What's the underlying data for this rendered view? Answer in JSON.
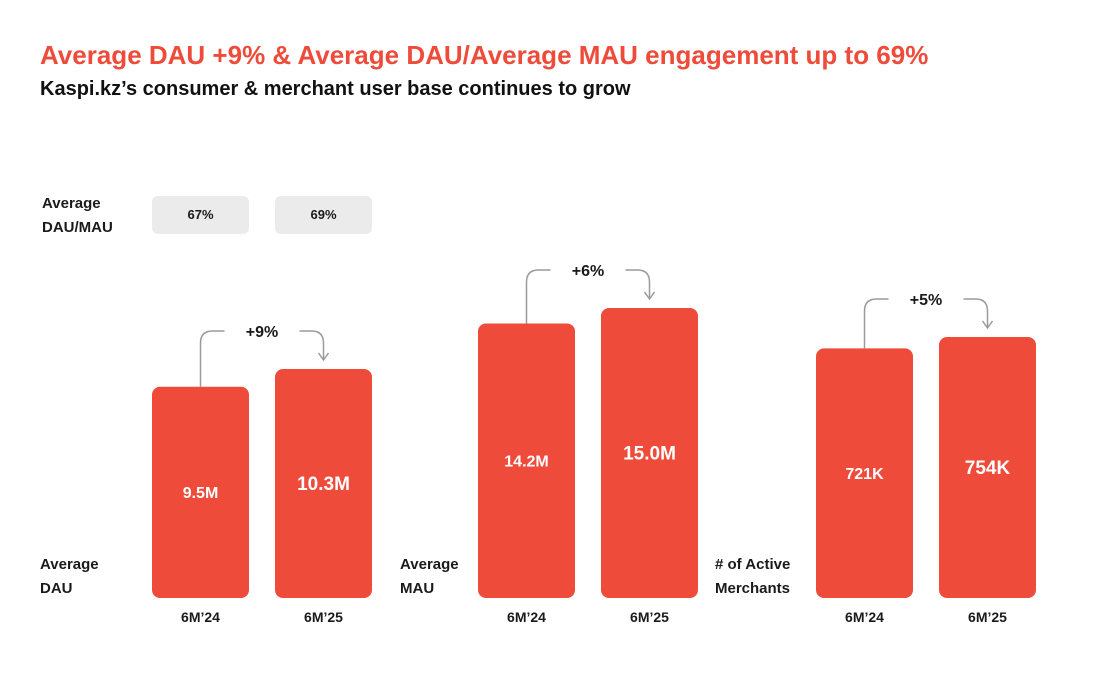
{
  "header": {
    "title": "Average DAU +9% & Average DAU/Average MAU engagement up to 69%",
    "subtitle": "Kaspi.kz’s consumer & merchant user base continues to grow"
  },
  "engagement": {
    "label_line1": "Average",
    "label_line2": "DAU/MAU",
    "values": [
      "67%",
      "69%"
    ]
  },
  "colors": {
    "bar": "#ee4b3a",
    "connector": "#9a9a9a",
    "pill": "#ebebeb",
    "title": "#ee4b3a"
  },
  "chart_data": [
    {
      "type": "bar",
      "label_line1": "Average",
      "label_line2": "DAU",
      "categories": [
        "6M’24",
        "6M’25"
      ],
      "values": [
        9.5,
        10.3
      ],
      "value_labels": [
        "9.5M",
        "10.3M"
      ],
      "unit": "M",
      "growth": "+9%"
    },
    {
      "type": "bar",
      "label_line1": "Average",
      "label_line2": "MAU",
      "categories": [
        "6M’24",
        "6M’25"
      ],
      "values": [
        14.2,
        15.0
      ],
      "value_labels": [
        "14.2M",
        "15.0M"
      ],
      "unit": "M",
      "growth": "+6%"
    },
    {
      "type": "bar",
      "label_line1": "# of Active",
      "label_line2": "Merchants",
      "categories": [
        "6M’24",
        "6M’25"
      ],
      "values": [
        721,
        754
      ],
      "value_labels": [
        "721K",
        "754K"
      ],
      "unit": "K",
      "growth": "+5%"
    }
  ]
}
